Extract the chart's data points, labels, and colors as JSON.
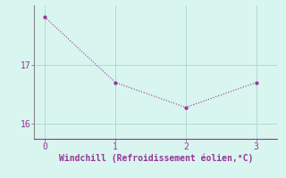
{
  "x": [
    0,
    1,
    2,
    3
  ],
  "y": [
    17.8,
    16.7,
    16.28,
    16.7
  ],
  "line_color": "#993399",
  "marker_color": "#993399",
  "bg_color": "#d8f5ef",
  "grid_color": "#aad8d0",
  "spine_color": "#888888",
  "axis_color": "#993399",
  "xlabel": "Windchill (Refroidissement éolien,°C)",
  "xlabel_fontsize": 7,
  "tick_fontsize": 7,
  "ylim": [
    15.75,
    18.0
  ],
  "xlim": [
    -0.15,
    3.3
  ],
  "yticks": [
    16,
    17
  ],
  "xticks": [
    0,
    1,
    2,
    3
  ],
  "linewidth": 0.8,
  "markersize": 3,
  "dotted": true
}
